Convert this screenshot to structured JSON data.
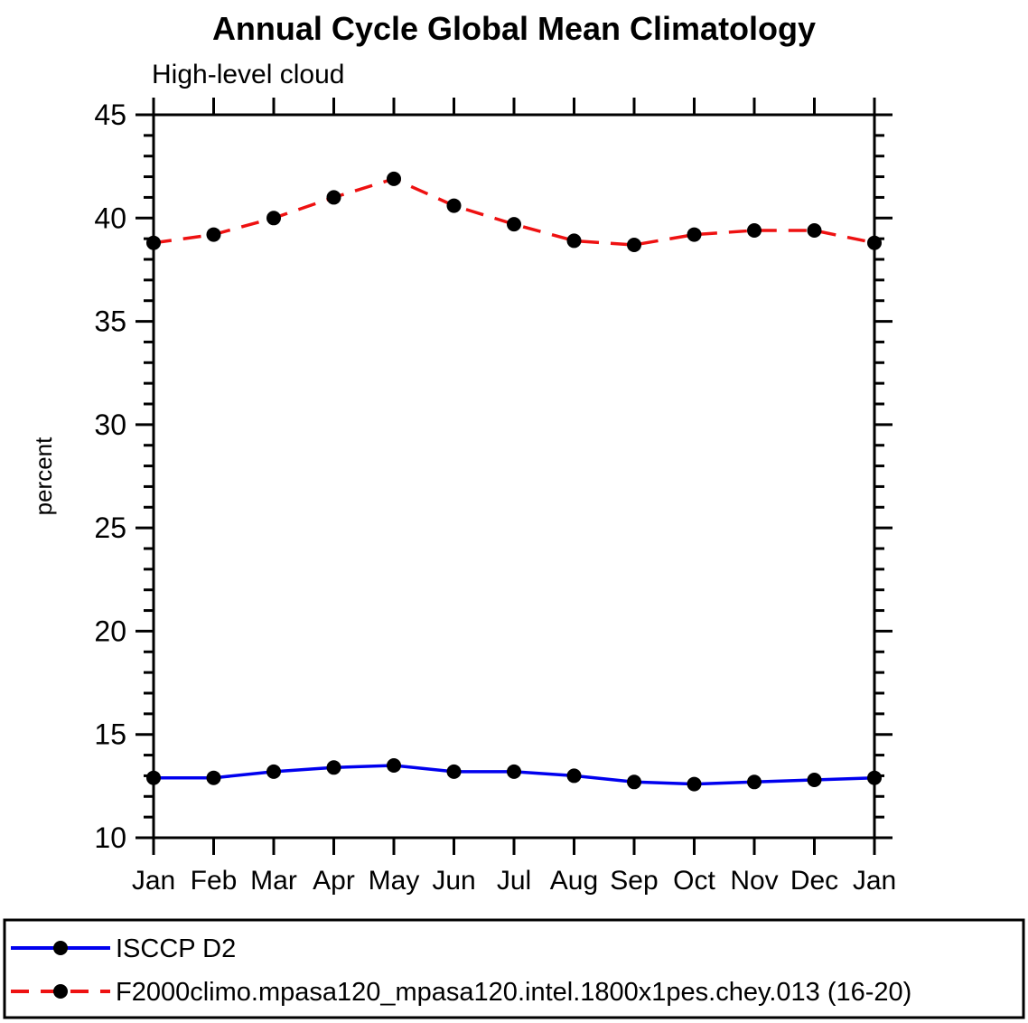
{
  "page": {
    "background": "#ffffff"
  },
  "chart": {
    "title": "Annual Cycle Global Mean Climatology",
    "subtitle": "High-level cloud",
    "ylabel": "percent"
  },
  "chart_data": {
    "type": "line",
    "title": "Annual Cycle Global Mean Climatology",
    "subtitle": "High-level cloud",
    "xlabel": "",
    "ylabel": "percent",
    "categories": [
      "Jan",
      "Feb",
      "Mar",
      "Apr",
      "May",
      "Jun",
      "Jul",
      "Aug",
      "Sep",
      "Oct",
      "Nov",
      "Dec",
      "Jan"
    ],
    "ylim": [
      10,
      45
    ],
    "yticks": [
      10,
      15,
      20,
      25,
      30,
      35,
      40,
      45
    ],
    "minor_tick_step": 1,
    "grid": false,
    "legend_position": "bottom-box",
    "marker": "filled-circle",
    "marker_color": "#000000",
    "series": [
      {
        "name": "ISCCP D2",
        "color": "#0000ee",
        "line_style": "solid",
        "values": [
          12.9,
          12.9,
          13.2,
          13.4,
          13.5,
          13.2,
          13.2,
          13.0,
          12.7,
          12.6,
          12.7,
          12.8,
          12.9
        ]
      },
      {
        "name": "F2000climo.mpasa120_mpasa120.intel.1800x1pes.chey.013 (16-20)",
        "color": "#ee1111",
        "line_style": "dashed",
        "values": [
          38.8,
          39.2,
          40.0,
          41.0,
          41.9,
          40.6,
          39.7,
          38.9,
          38.7,
          39.2,
          39.4,
          39.4,
          38.8
        ]
      }
    ]
  }
}
